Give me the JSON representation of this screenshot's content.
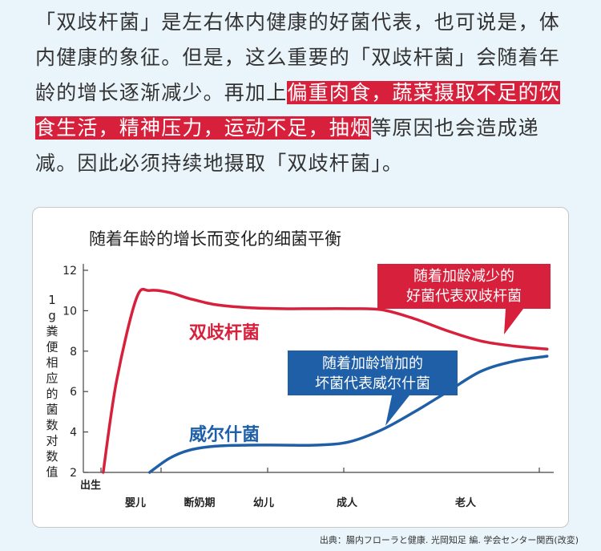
{
  "intro": {
    "before": "「双歧杆菌」是左右体内健康的好菌代表，也可说是，体内健康的象征。但是，这么重要的「双歧杆菌」会随着年龄的增长逐渐减少。再加上",
    "highlight": "偏重肉食，蔬菜摄取不足的饮食生活，精神压力，运动不足，抽烟",
    "after": "等原因也会造成递减。因此必须持续地摄取「双歧杆菌」。"
  },
  "source": "出典：腸内フローラと健康. 光岡知足 編. 学会センター関西(改変)",
  "colors": {
    "accent_red": "#d7213c",
    "accent_blue": "#1f5fa8",
    "background": "#eaf5fb"
  },
  "chart_data": {
    "type": "line",
    "title": "随着年龄的增长而变化的细菌平衡",
    "ylabel": "1g粪便相应的菌数对数值",
    "ylim": [
      2,
      12
    ],
    "yticks": [
      2,
      4,
      6,
      8,
      10,
      12
    ],
    "x_categories": [
      "出生",
      "婴儿",
      "断奶期",
      "幼儿",
      "成人",
      "老人"
    ],
    "series": [
      {
        "name": "双歧杆菌",
        "color": "#d7213c",
        "x": [
          0.3,
          0.5,
          0.8,
          1.0,
          1.3,
          1.6,
          2.0,
          2.5,
          3.0,
          3.5,
          4.0,
          4.5,
          5.0,
          5.5,
          6.0,
          6.5,
          7.0
        ],
        "y": [
          2.0,
          6.5,
          10.6,
          11.0,
          10.9,
          10.6,
          10.3,
          10.15,
          10.1,
          10.1,
          10.1,
          10.05,
          9.6,
          9.0,
          8.5,
          8.25,
          8.1
        ]
      },
      {
        "name": "威尔什菌",
        "color": "#1f5fa8",
        "x": [
          1.0,
          1.3,
          1.6,
          2.0,
          2.5,
          3.0,
          3.5,
          4.0,
          4.5,
          5.0,
          5.5,
          6.0,
          6.5,
          7.0
        ],
        "y": [
          2.0,
          2.7,
          3.1,
          3.3,
          3.35,
          3.35,
          3.35,
          3.5,
          4.1,
          5.0,
          6.0,
          7.0,
          7.5,
          7.75
        ]
      }
    ],
    "callouts": [
      {
        "name": "bifido-callout",
        "lines": [
          "随着加龄减少的",
          "好菌代表双歧杆菌"
        ]
      },
      {
        "name": "welchii-callout",
        "lines": [
          "随着加龄增加的",
          "坏菌代表威尔什菌"
        ]
      }
    ]
  }
}
